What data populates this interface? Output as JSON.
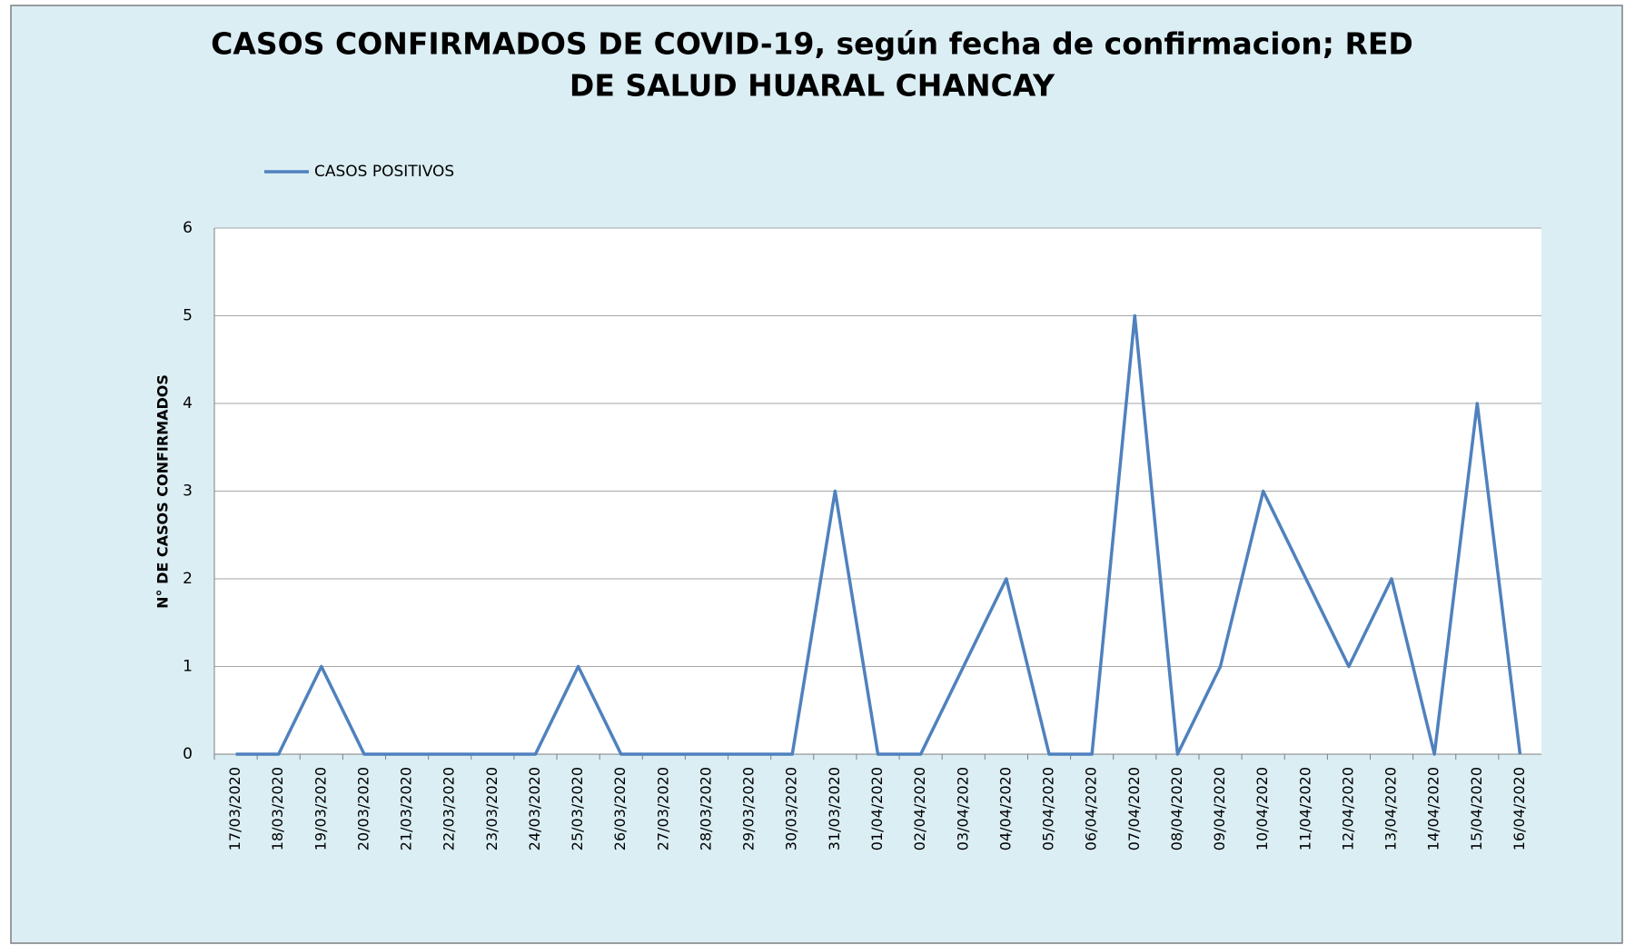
{
  "chart_data": {
    "type": "line",
    "title_lines": [
      "CASOS CONFIRMADOS DE COVID-19, según fecha de confirmacion; RED",
      "DE SALUD HUARAL CHANCAY"
    ],
    "y_label": "N° DE CASOS CONFIRMADOS",
    "categories": [
      "17/03/2020",
      "18/03/2020",
      "19/03/2020",
      "20/03/2020",
      "21/03/2020",
      "22/03/2020",
      "23/03/2020",
      "24/03/2020",
      "25/03/2020",
      "26/03/2020",
      "27/03/2020",
      "28/03/2020",
      "29/03/2020",
      "30/03/2020",
      "31/03/2020",
      "01/04/2020",
      "02/04/2020",
      "03/04/2020",
      "04/04/2020",
      "05/04/2020",
      "06/04/2020",
      "07/04/2020",
      "08/04/2020",
      "09/04/2020",
      "10/04/2020",
      "11/04/2020",
      "12/04/2020",
      "13/04/2020",
      "14/04/2020",
      "15/04/2020",
      "16/04/2020"
    ],
    "series": [
      {
        "name": "CASOS POSITIVOS",
        "color": "#4f81bd",
        "values": [
          0,
          0,
          1,
          0,
          0,
          0,
          0,
          0,
          1,
          0,
          0,
          0,
          0,
          0,
          3,
          0,
          0,
          1,
          2,
          0,
          0,
          5,
          0,
          1,
          3,
          2,
          1,
          2,
          0,
          4,
          0
        ]
      }
    ],
    "ylim": [
      0,
      6
    ],
    "yticks": [
      0,
      1,
      2,
      3,
      4,
      5,
      6
    ],
    "grid": true,
    "legend": "top-left"
  }
}
